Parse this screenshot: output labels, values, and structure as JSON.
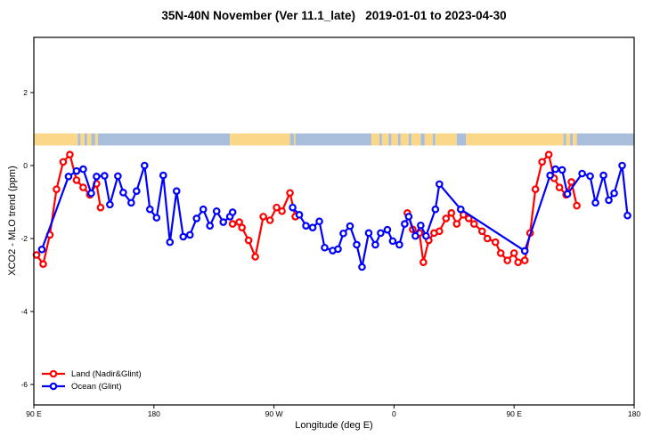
{
  "title": "35N-40N November (Ver 11.1_late)   2019-01-01 to 2023-04-30",
  "axes": {
    "x_label": "Longitude (deg E)",
    "y_label": "XCO2 - MLO trend (ppm)",
    "x_ticks": [
      {
        "deg": 0,
        "label": "90 E"
      },
      {
        "deg": 90,
        "label": "180"
      },
      {
        "deg": 180,
        "label": "90 W"
      },
      {
        "deg": 270,
        "label": "0"
      },
      {
        "deg": 360,
        "label": "90 E"
      },
      {
        "deg": 450,
        "label": "180"
      }
    ],
    "y_ticks": [
      {
        "v": 2,
        "label": "2"
      },
      {
        "v": 0,
        "label": "0"
      },
      {
        "v": -2,
        "label": "-2"
      },
      {
        "v": -4,
        "label": "-4"
      },
      {
        "v": -6,
        "label": "-6"
      }
    ]
  },
  "colors": {
    "land_series": "#ff0000",
    "ocean_series": "#0000ff",
    "band_land": "#fbd78a",
    "band_ocean": "#a9bedb",
    "axis": "#000000"
  },
  "chart_data": {
    "type": "line",
    "title": "35N-40N November (Ver 11.1_late)   2019-01-01 to 2023-04-30",
    "xlabel": "Longitude (deg E)",
    "ylabel": "XCO2 - MLO trend (ppm)",
    "x_axis_note": "x values are degrees east of 90E; axis wraps 90E>180>90W>0>90E>180 (450 deg total)",
    "xlim": [
      0,
      450
    ],
    "ylim": [
      -6.55,
      3.5
    ],
    "grid": false,
    "legend_position": "bottom-left inside plot",
    "marker": "open-circle",
    "series": [
      {
        "name": "Land (Nadir&Glint)",
        "color": "#ff0000",
        "segments": [
          [
            [
              2,
              -2.45
            ],
            [
              7,
              -2.7
            ],
            [
              12,
              -1.9
            ],
            [
              17,
              -0.65
            ],
            [
              22,
              0.1
            ],
            [
              27,
              0.3
            ],
            [
              32,
              -0.4
            ],
            [
              37,
              -0.6
            ],
            [
              42,
              -0.8
            ],
            [
              47,
              -0.5
            ],
            [
              50,
              -1.15
            ]
          ],
          [
            [
              149,
              -1.6
            ],
            [
              154,
              -1.55
            ],
            [
              156,
              -1.7
            ],
            [
              161,
              -2.05
            ],
            [
              166,
              -2.5
            ],
            [
              172,
              -1.4
            ],
            [
              177,
              -1.5
            ],
            [
              182,
              -1.15
            ],
            [
              186,
              -1.25
            ],
            [
              192,
              -0.75
            ],
            [
              196,
              -1.4
            ]
          ],
          [
            [
              280,
              -1.3
            ],
            [
              284,
              -1.75
            ],
            [
              289,
              -1.85
            ],
            [
              292,
              -2.65
            ],
            [
              296,
              -2.05
            ],
            [
              300,
              -1.85
            ],
            [
              304,
              -1.8
            ],
            [
              309,
              -1.45
            ],
            [
              313,
              -1.3
            ],
            [
              317,
              -1.6
            ],
            [
              322,
              -1.35
            ],
            [
              326,
              -1.45
            ],
            [
              330,
              -1.6
            ],
            [
              336,
              -1.8
            ],
            [
              340,
              -2.0
            ],
            [
              346,
              -2.1
            ],
            [
              350,
              -2.4
            ],
            [
              355,
              -2.6
            ],
            [
              360,
              -2.4
            ],
            [
              363,
              -2.65
            ],
            [
              368,
              -2.6
            ],
            [
              372,
              -1.85
            ],
            [
              376,
              -0.65
            ],
            [
              381,
              0.1
            ],
            [
              386,
              0.3
            ],
            [
              390,
              -0.35
            ],
            [
              394,
              -0.6
            ],
            [
              399,
              -0.8
            ],
            [
              403,
              -0.45
            ],
            [
              407,
              -1.1
            ]
          ]
        ]
      },
      {
        "name": "Ocean (Glint)",
        "color": "#0000ff",
        "segments": [
          [
            [
              6,
              -2.3
            ],
            [
              26,
              -0.3
            ],
            [
              32,
              -0.15
            ],
            [
              37,
              -0.1
            ],
            [
              43,
              -0.76
            ],
            [
              47,
              -0.3
            ],
            [
              53,
              -0.28
            ],
            [
              57,
              -1.07
            ],
            [
              63,
              -0.29
            ],
            [
              67,
              -0.74
            ],
            [
              73,
              -1.02
            ],
            [
              77,
              -0.7
            ],
            [
              83,
              0.0
            ],
            [
              87,
              -1.2
            ],
            [
              92,
              -1.43
            ],
            [
              97,
              -0.27
            ],
            [
              102,
              -2.1
            ],
            [
              107,
              -0.7
            ],
            [
              112,
              -1.95
            ],
            [
              117,
              -1.9
            ],
            [
              122,
              -1.45
            ],
            [
              127,
              -1.2
            ],
            [
              132,
              -1.65
            ],
            [
              137,
              -1.25
            ],
            [
              142,
              -1.55
            ],
            [
              147,
              -1.4
            ],
            [
              149,
              -1.28
            ]
          ],
          [
            [
              194,
              -1.15
            ],
            [
              199,
              -1.35
            ],
            [
              204,
              -1.65
            ],
            [
              209,
              -1.7
            ],
            [
              214,
              -1.53
            ],
            [
              218,
              -2.25
            ],
            [
              224,
              -2.33
            ],
            [
              228,
              -2.29
            ],
            [
              232,
              -1.86
            ],
            [
              237,
              -1.66
            ],
            [
              242,
              -2.17
            ],
            [
              246,
              -2.78
            ],
            [
              251,
              -1.85
            ],
            [
              256,
              -2.17
            ],
            [
              260,
              -1.85
            ],
            [
              265,
              -1.76
            ],
            [
              269,
              -2.07
            ],
            [
              274,
              -2.17
            ],
            [
              278,
              -1.6
            ],
            [
              281,
              -1.4
            ],
            [
              286,
              -1.93
            ],
            [
              290,
              -1.64
            ],
            [
              294,
              -1.93
            ],
            [
              301,
              -1.2
            ],
            [
              304,
              -0.51
            ],
            [
              320,
              -1.2
            ],
            [
              368,
              -2.34
            ],
            [
              387,
              -0.27
            ],
            [
              391,
              -0.1
            ],
            [
              396,
              -0.12
            ],
            [
              400,
              -0.78
            ],
            [
              411,
              -0.22
            ],
            [
              417,
              -0.29
            ],
            [
              421,
              -1.02
            ],
            [
              427,
              -0.27
            ],
            [
              431,
              -0.95
            ],
            [
              435,
              -0.76
            ],
            [
              441,
              0.0
            ],
            [
              445,
              -1.37
            ]
          ]
        ]
      }
    ],
    "map_band": {
      "description": "land/ocean strip along 35N-40N",
      "y_range_ppm": [
        0.55,
        0.88
      ],
      "segments": [
        {
          "from": 0,
          "to": 33,
          "kind": "land"
        },
        {
          "from": 33,
          "to": 35,
          "kind": "ocean"
        },
        {
          "from": 35,
          "to": 38,
          "kind": "land"
        },
        {
          "from": 38,
          "to": 40,
          "kind": "ocean"
        },
        {
          "from": 40,
          "to": 43,
          "kind": "land"
        },
        {
          "from": 43,
          "to": 46,
          "kind": "ocean"
        },
        {
          "from": 46,
          "to": 48,
          "kind": "land"
        },
        {
          "from": 48,
          "to": 147,
          "kind": "ocean"
        },
        {
          "from": 147,
          "to": 192,
          "kind": "land"
        },
        {
          "from": 192,
          "to": 195,
          "kind": "ocean"
        },
        {
          "from": 195,
          "to": 196,
          "kind": "land"
        },
        {
          "from": 196,
          "to": 253,
          "kind": "ocean"
        },
        {
          "from": 253,
          "to": 259,
          "kind": "land"
        },
        {
          "from": 259,
          "to": 261,
          "kind": "ocean"
        },
        {
          "from": 261,
          "to": 266,
          "kind": "land"
        },
        {
          "from": 266,
          "to": 268,
          "kind": "ocean"
        },
        {
          "from": 268,
          "to": 273,
          "kind": "land"
        },
        {
          "from": 273,
          "to": 275,
          "kind": "ocean"
        },
        {
          "from": 275,
          "to": 281,
          "kind": "land"
        },
        {
          "from": 281,
          "to": 283,
          "kind": "ocean"
        },
        {
          "from": 283,
          "to": 290,
          "kind": "land"
        },
        {
          "from": 290,
          "to": 293,
          "kind": "ocean"
        },
        {
          "from": 293,
          "to": 299,
          "kind": "land"
        },
        {
          "from": 299,
          "to": 301,
          "kind": "ocean"
        },
        {
          "from": 301,
          "to": 317,
          "kind": "land"
        },
        {
          "from": 317,
          "to": 324,
          "kind": "ocean"
        },
        {
          "from": 324,
          "to": 397,
          "kind": "land"
        },
        {
          "from": 397,
          "to": 399,
          "kind": "ocean"
        },
        {
          "from": 399,
          "to": 402,
          "kind": "land"
        },
        {
          "from": 402,
          "to": 404,
          "kind": "ocean"
        },
        {
          "from": 404,
          "to": 407,
          "kind": "land"
        },
        {
          "from": 407,
          "to": 450,
          "kind": "ocean"
        }
      ]
    }
  }
}
